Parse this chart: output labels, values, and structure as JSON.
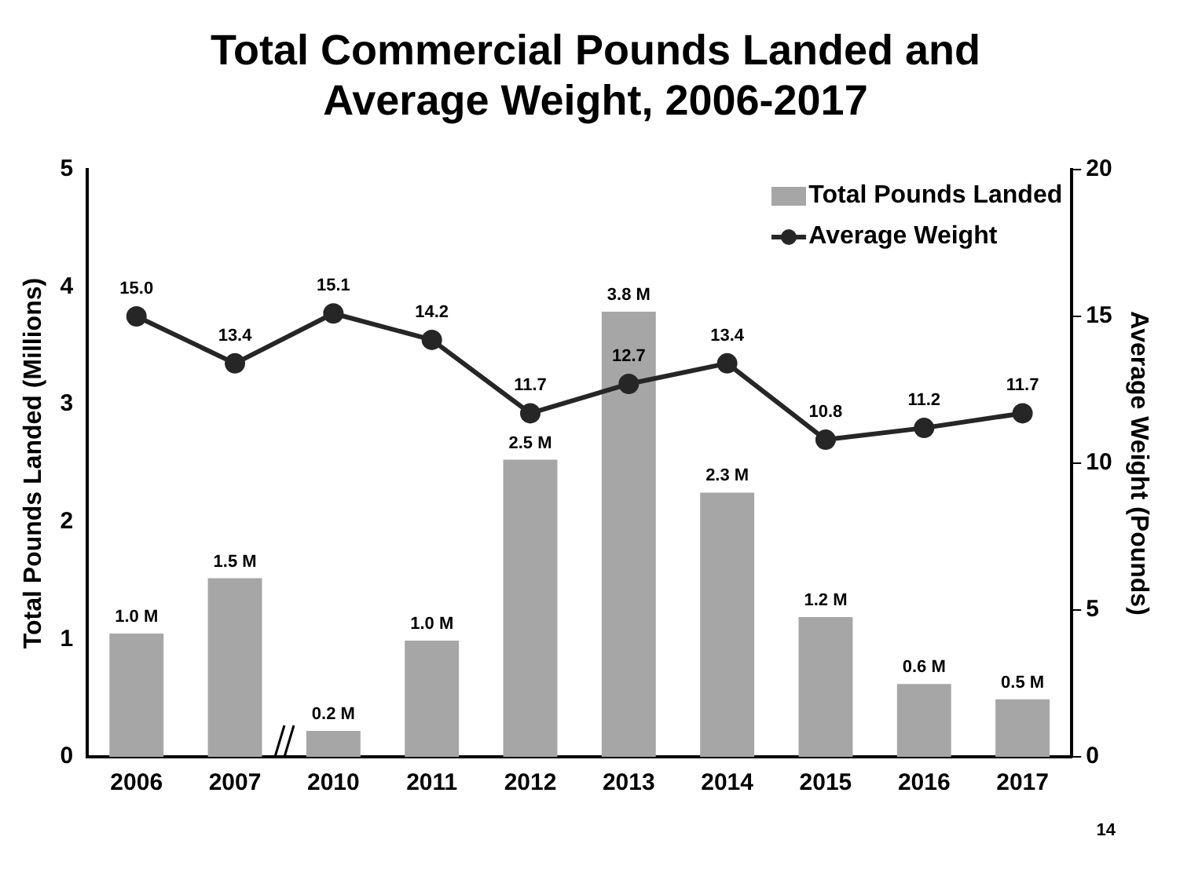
{
  "chart_data": {
    "type": "bar",
    "title": "Total Commercial Pounds Landed and Average Weight, 2006-2017",
    "categories": [
      "2006",
      "2007",
      "2010",
      "2011",
      "2012",
      "2013",
      "2014",
      "2015",
      "2016",
      "2017"
    ],
    "series": [
      {
        "name": "Total Pounds Landed",
        "color": "#a6a6a6",
        "values": [
          1.05,
          1.52,
          0.22,
          0.99,
          2.53,
          3.79,
          2.25,
          1.19,
          0.62,
          0.49
        ],
        "value_labels": [
          "1.0 M",
          "1.5 M",
          "0.2 M",
          "1.0 M",
          "2.5 M",
          "3.8 M",
          "2.3 M",
          "1.2 M",
          "0.6 M",
          "0.5 M"
        ]
      },
      {
        "name": "Average Weight",
        "type": "line",
        "axis": "y2",
        "color": "#262626",
        "marker": "circle",
        "values": [
          15.0,
          13.4,
          15.1,
          14.2,
          11.7,
          12.7,
          13.4,
          10.8,
          11.2,
          11.7
        ],
        "value_labels": [
          "15.0",
          "13.4",
          "15.1",
          "14.2",
          "11.7",
          "12.7",
          "13.4",
          "10.8",
          "11.2",
          "11.7"
        ]
      }
    ],
    "ylabel": "Total Pounds Landed (Millions)",
    "y2label": "Average Weight (Pounds)",
    "ylim": [
      0,
      5
    ],
    "yticks": [
      0,
      1,
      2,
      3,
      4,
      5
    ],
    "y2lim": [
      0,
      20
    ],
    "y2ticks": [
      0,
      5,
      10,
      15,
      20
    ],
    "grid": false,
    "legend": "top right",
    "annotations": [
      "14"
    ]
  }
}
